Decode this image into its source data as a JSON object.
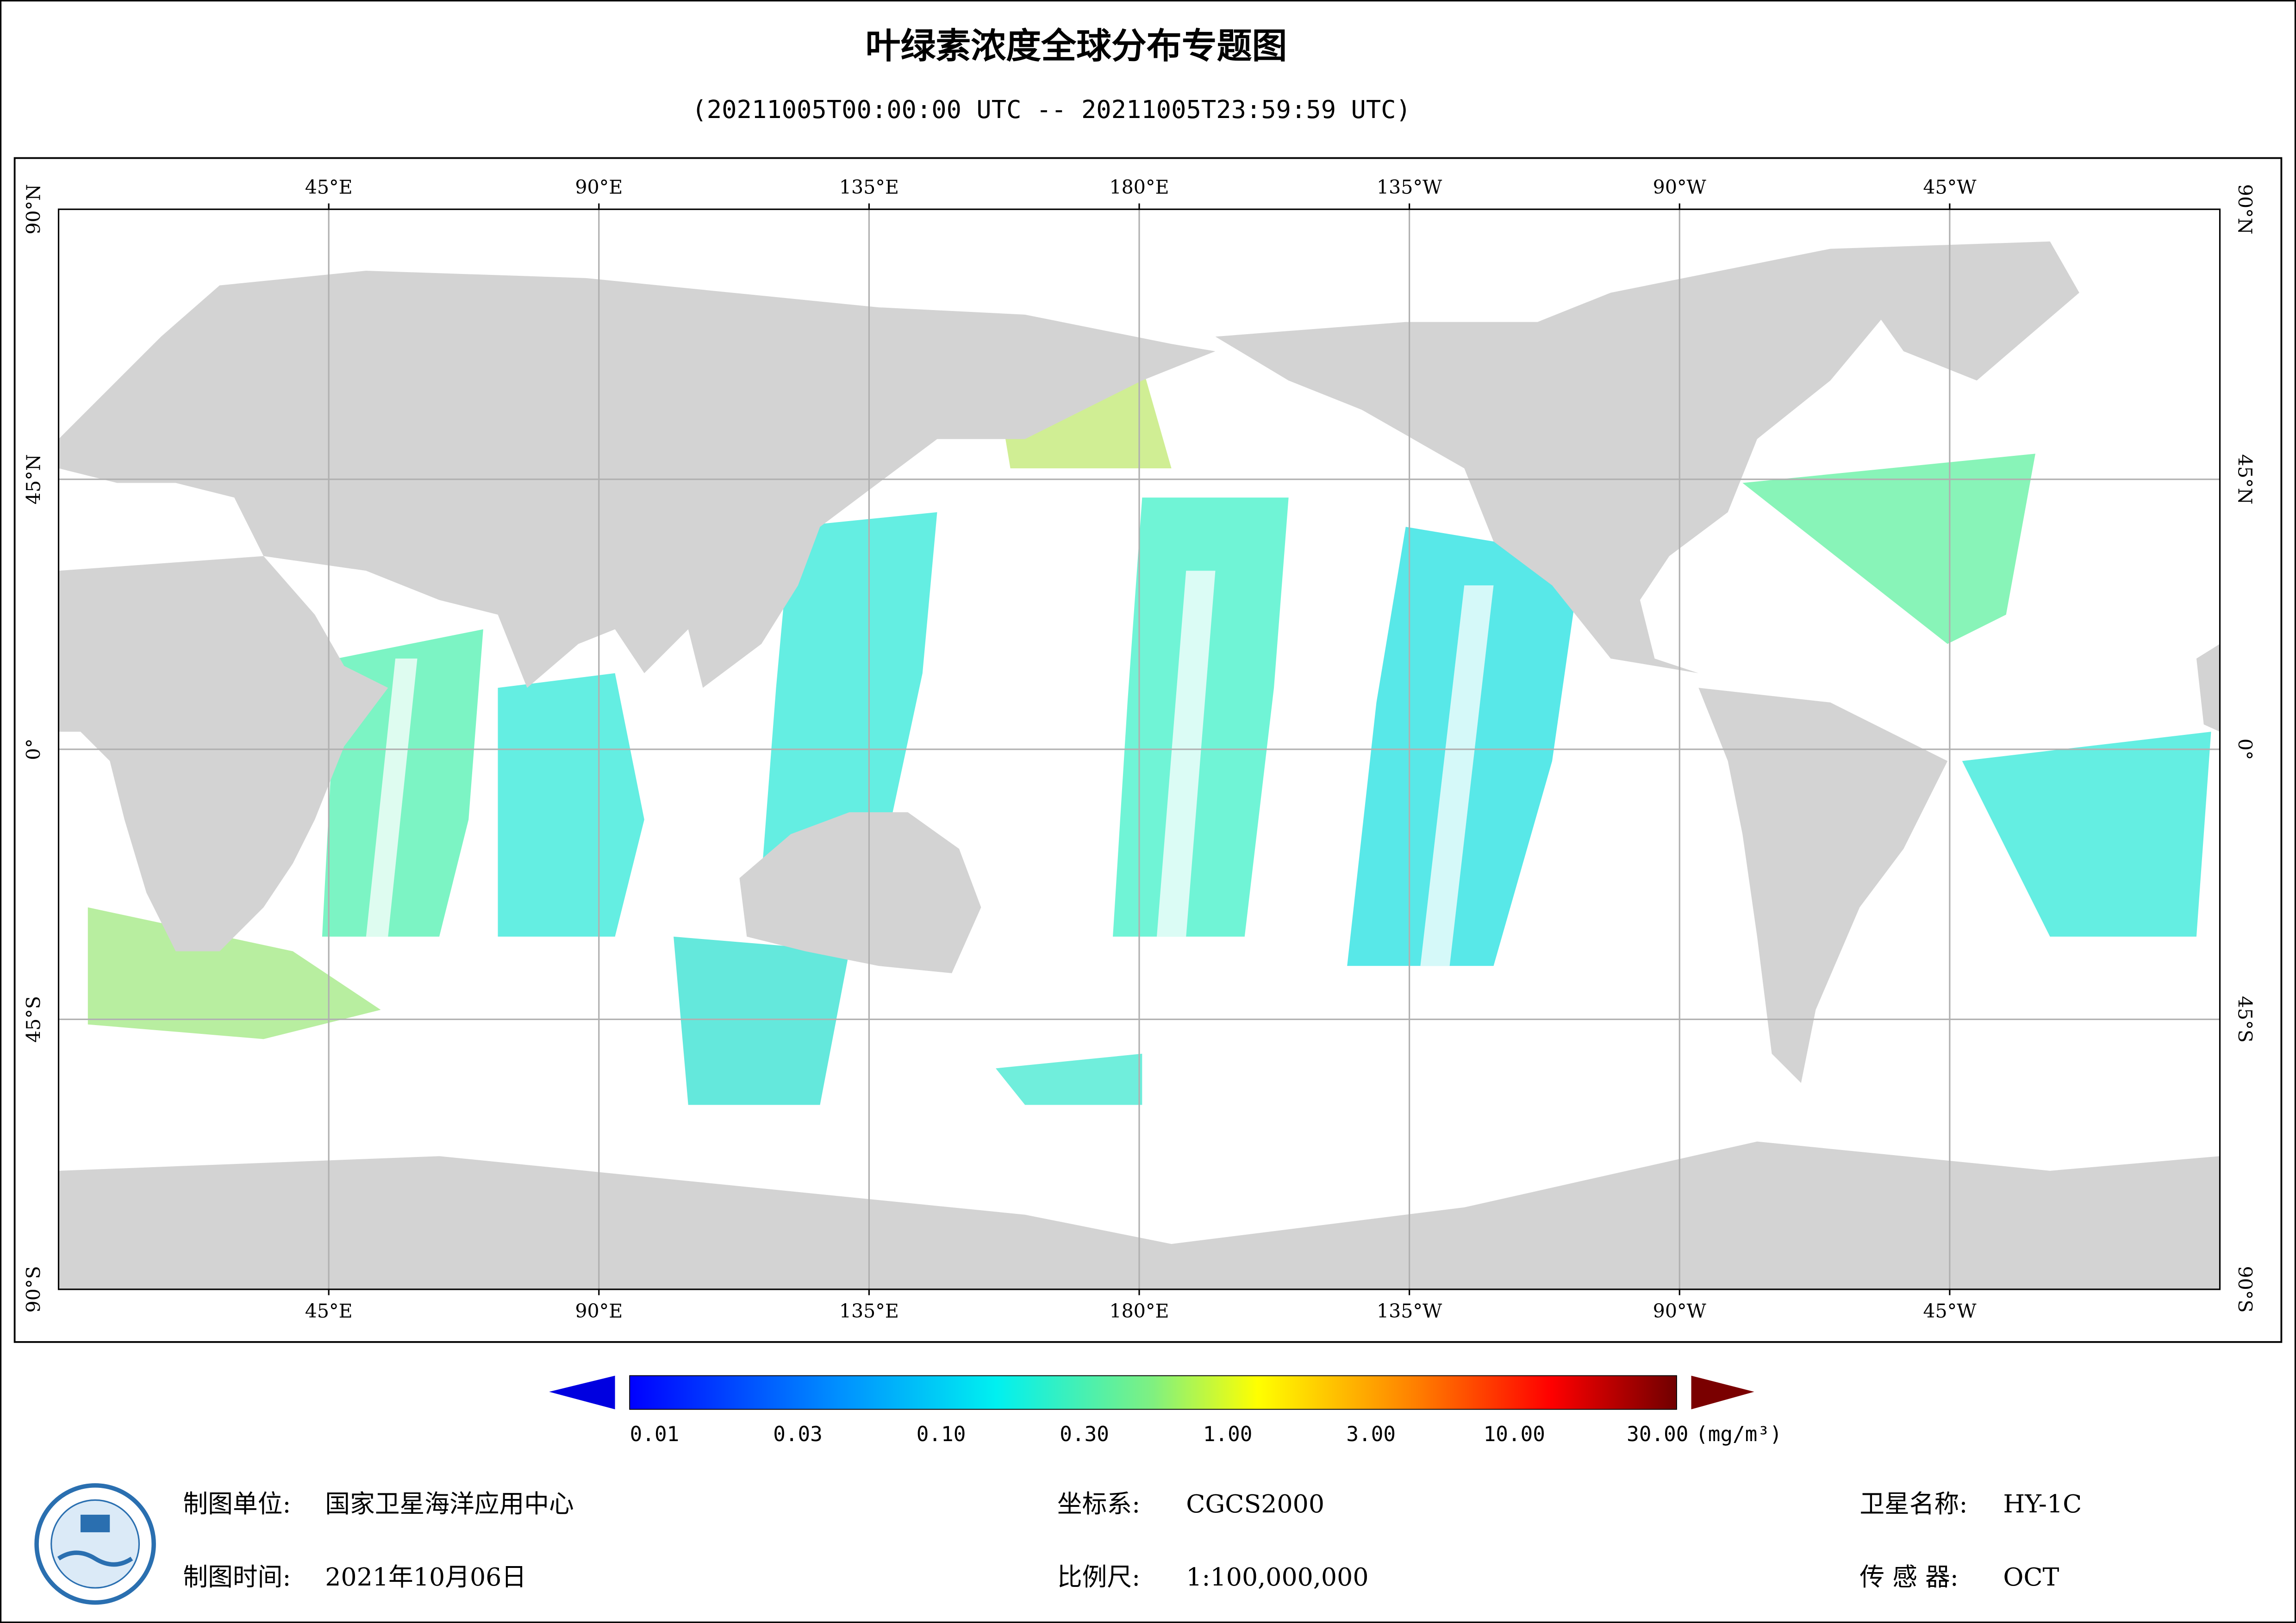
{
  "header": {
    "title": "叶绿素浓度全球分布专题图",
    "subtitle": "(20211005T00:00:00 UTC -- 20211005T23:59:59 UTC)"
  },
  "map": {
    "lon_labels": [
      "45°E",
      "90°E",
      "135°E",
      "180°E",
      "135°W",
      "90°W",
      "45°W"
    ],
    "lat_labels": [
      "90°N",
      "45°N",
      "0°",
      "45°S",
      "90°S"
    ]
  },
  "colorbar": {
    "ticks": [
      "0.01",
      "0.03",
      "0.10",
      "0.30",
      "1.00",
      "3.00",
      "10.00",
      "30.00"
    ],
    "unit": "(mg/m³)"
  },
  "footer": {
    "unit_label": "制图单位:",
    "unit": "国家卫星海洋应用中心",
    "date_label": "制图时间:",
    "date": "2021年10月06日",
    "crs_label": "坐标系:",
    "crs": "CGCS2000",
    "scale_label": "比例尺:",
    "scale": "1:100,000,000",
    "sat_label": "卫星名称:",
    "sat": "HY-1C",
    "sensor_label": "传 感 器:",
    "sensor": "OCT"
  }
}
